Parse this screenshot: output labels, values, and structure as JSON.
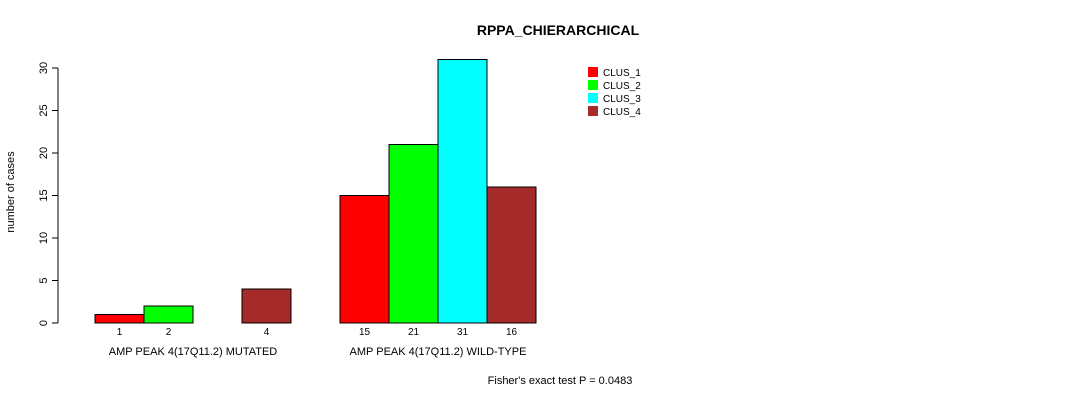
{
  "chart_data": {
    "type": "bar",
    "title": "RPPA_CHIERARCHICAL",
    "ylabel": "number of cases",
    "xlabel": "",
    "ylim": [
      0,
      30
    ],
    "yticks": [
      0,
      5,
      10,
      15,
      20,
      25,
      30
    ],
    "categories": [
      "AMP PEAK 4(17Q11.2) MUTATED",
      "AMP PEAK 4(17Q11.2) WILD-TYPE"
    ],
    "series": [
      {
        "name": "CLUS_1",
        "color": "#FF0000",
        "values": [
          1,
          15
        ]
      },
      {
        "name": "CLUS_2",
        "color": "#00FF00",
        "values": [
          2,
          21
        ]
      },
      {
        "name": "CLUS_3",
        "color": "#00FFFF",
        "values": [
          0,
          31
        ]
      },
      {
        "name": "CLUS_4",
        "color": "#A52A2A",
        "values": [
          4,
          16
        ]
      }
    ],
    "count_labels": [
      [
        "1",
        "2",
        "",
        "4"
      ],
      [
        "15",
        "21",
        "31",
        "16"
      ]
    ],
    "legend_position": "top-right",
    "annotation": "Fisher's exact test P = 0.0483"
  }
}
